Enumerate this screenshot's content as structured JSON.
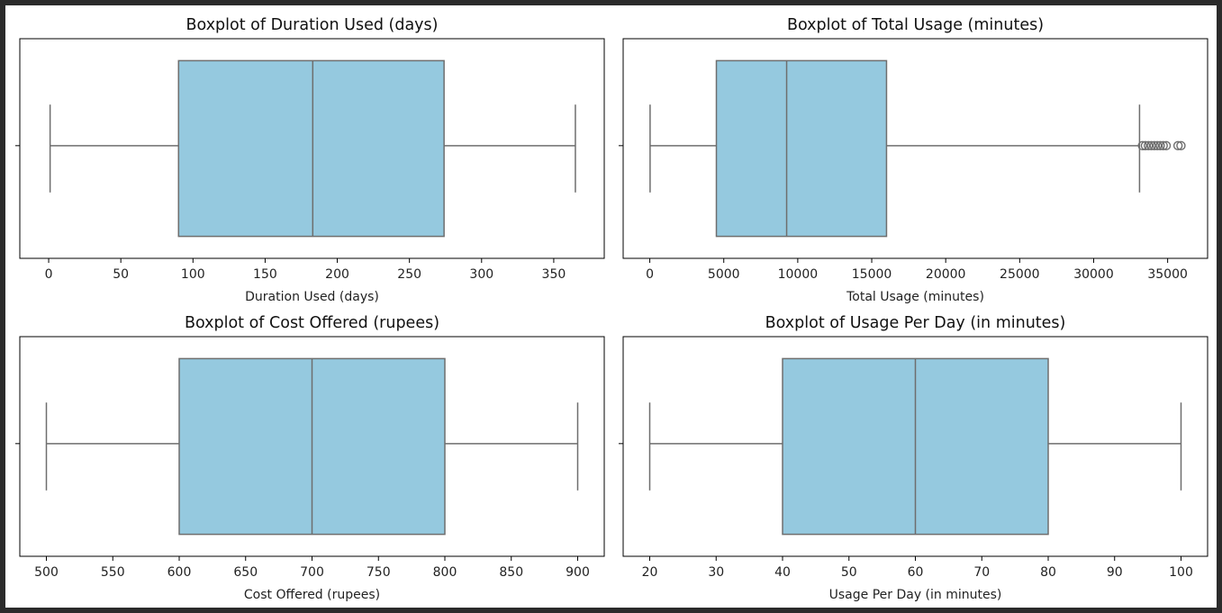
{
  "colors": {
    "box_fill": "#95c9df",
    "line": "#6e6e6e",
    "frame": "#000000"
  },
  "chart_data": [
    {
      "type": "boxplot",
      "title": "Boxplot of Duration Used (days)",
      "xlabel": "Duration Used (days)",
      "ylabel": "",
      "xlim": [
        -20,
        385
      ],
      "ticks": [
        0,
        50,
        100,
        150,
        200,
        250,
        300,
        350
      ],
      "tick_labels": [
        "0",
        "50",
        "100",
        "150",
        "200",
        "250",
        "300",
        "350"
      ],
      "stats": {
        "whisker_low": 1,
        "q1": 90,
        "median": 183,
        "q3": 274,
        "whisker_high": 365
      },
      "outliers": []
    },
    {
      "type": "boxplot",
      "title": "Boxplot of Total Usage (minutes)",
      "xlabel": "Total Usage (minutes)",
      "ylabel": "",
      "xlim": [
        -1800,
        37700
      ],
      "ticks": [
        0,
        5000,
        10000,
        15000,
        20000,
        25000,
        30000,
        35000
      ],
      "tick_labels": [
        "0",
        "5000",
        "10000",
        "15000",
        "20000",
        "25000",
        "30000",
        "35000"
      ],
      "stats": {
        "whisker_low": 20,
        "q1": 4500,
        "median": 9250,
        "q3": 16000,
        "whisker_high": 33100
      },
      "outliers": [
        33300,
        33500,
        33700,
        33900,
        34100,
        34300,
        34500,
        34700,
        34900,
        35700,
        35900
      ]
    },
    {
      "type": "boxplot",
      "title": "Boxplot of Cost Offered (rupees)",
      "xlabel": "Cost Offered (rupees)",
      "ylabel": "",
      "xlim": [
        480,
        920
      ],
      "ticks": [
        500,
        550,
        600,
        650,
        700,
        750,
        800,
        850,
        900
      ],
      "tick_labels": [
        "500",
        "550",
        "600",
        "650",
        "700",
        "750",
        "800",
        "850",
        "900"
      ],
      "stats": {
        "whisker_low": 500,
        "q1": 600,
        "median": 700,
        "q3": 800,
        "whisker_high": 900
      },
      "outliers": []
    },
    {
      "type": "boxplot",
      "title": "Boxplot of Usage Per Day (in minutes)",
      "xlabel": "Usage Per Day (in minutes)",
      "ylabel": "",
      "xlim": [
        16,
        104
      ],
      "ticks": [
        20,
        30,
        40,
        50,
        60,
        70,
        80,
        90,
        100
      ],
      "tick_labels": [
        "20",
        "30",
        "40",
        "50",
        "60",
        "70",
        "80",
        "90",
        "100"
      ],
      "stats": {
        "whisker_low": 20,
        "q1": 40,
        "median": 60,
        "q3": 80,
        "whisker_high": 100
      },
      "outliers": []
    }
  ]
}
